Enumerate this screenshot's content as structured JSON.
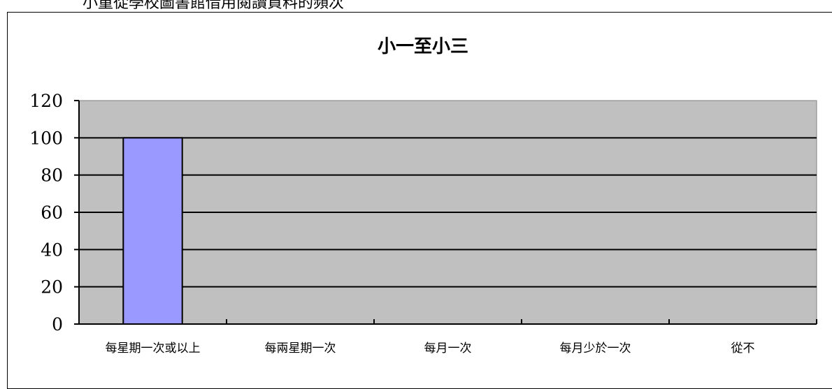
{
  "page": {
    "heading_fragment": "小童從學校圖書館借用閱讀資料的頻次"
  },
  "chart_data": {
    "type": "bar",
    "title": "小一至小三",
    "categories": [
      "每星期一次或以上",
      "每兩星期一次",
      "每月一次",
      "每月少於一次",
      "從不"
    ],
    "values": [
      100,
      0,
      0,
      0,
      0
    ],
    "ylim": [
      0,
      120
    ],
    "yticks": [
      0,
      20,
      40,
      60,
      80,
      100,
      120
    ],
    "xlabel": "",
    "ylabel": "",
    "grid": true,
    "legend": "none",
    "colors": {
      "bar": "#9999ff",
      "plot_background": "#c0c0c0",
      "gridline": "#000000"
    }
  }
}
